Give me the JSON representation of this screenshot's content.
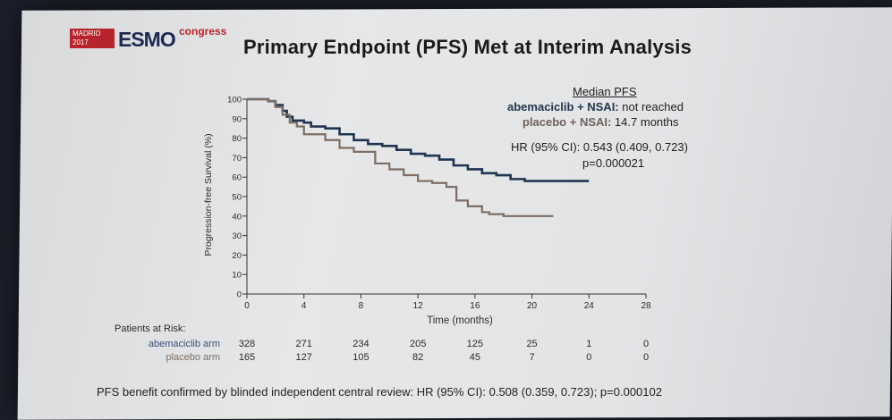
{
  "header": {
    "logo_city": "MADRID",
    "logo_year": "2017",
    "logo_name": "ESMO",
    "logo_sub": "congress",
    "title": "Primary Endpoint (PFS) Met at Interim Analysis"
  },
  "annotation": {
    "median_heading": "Median PFS",
    "arm1_label": "abemaciclib + NSAI:",
    "arm1_value": "not reached",
    "arm2_label": "placebo + NSAI:",
    "arm2_value": "14.7 months",
    "hr_text": "HR (95% CI): 0.543 (0.409, 0.723)",
    "p_text": "p=0.000021"
  },
  "risk_table": {
    "heading": "Patients at Risk:",
    "rows": [
      {
        "label": "abemaciclib arm",
        "values": [
          "328",
          "271",
          "234",
          "205",
          "125",
          "25",
          "1",
          "0"
        ],
        "color": "#3b4f7a"
      },
      {
        "label": "placebo arm",
        "values": [
          "165",
          "127",
          "105",
          "82",
          "45",
          "7",
          "0",
          "0"
        ],
        "color": "#7a6f66"
      }
    ]
  },
  "footer": "PFS benefit confirmed by blinded independent central review: HR (95% CI): 0.508 (0.359, 0.723); p=0.000102",
  "chart_data": {
    "type": "line",
    "title": "",
    "xlabel": "Time (months)",
    "ylabel": "Progression-free Survival (%)",
    "xlim": [
      0,
      28
    ],
    "ylim": [
      0,
      100
    ],
    "x_ticks": [
      0,
      4,
      8,
      12,
      16,
      20,
      24,
      28
    ],
    "y_ticks": [
      0,
      10,
      20,
      30,
      40,
      50,
      60,
      70,
      80,
      90,
      100
    ],
    "grid": false,
    "series": [
      {
        "name": "abemaciclib + NSAI",
        "color": "#1f3550",
        "step": true,
        "x": [
          0,
          1.5,
          2.0,
          2.5,
          2.8,
          3.2,
          4.0,
          4.5,
          5.5,
          6.5,
          7.5,
          8.5,
          9.5,
          10.5,
          11.5,
          12.5,
          13.5,
          14.5,
          15.5,
          16.5,
          17.5,
          18.5,
          19.5,
          20.5,
          22.0,
          24.0
        ],
        "y": [
          100,
          99,
          97,
          94,
          91,
          89,
          88,
          86,
          85,
          82,
          79,
          77,
          76,
          74,
          72,
          71,
          69,
          66,
          64,
          62,
          61,
          59,
          58,
          58,
          58,
          58
        ]
      },
      {
        "name": "placebo + NSAI",
        "color": "#7d6d63",
        "step": true,
        "x": [
          0,
          1.5,
          2.0,
          2.5,
          3.0,
          3.5,
          4.0,
          5.5,
          6.5,
          7.5,
          9.0,
          10.0,
          11.0,
          12.0,
          13.0,
          14.0,
          14.7,
          15.5,
          16.5,
          17.0,
          18.0,
          20.0,
          21.5
        ],
        "y": [
          100,
          99,
          96,
          92,
          88,
          86,
          82,
          79,
          75,
          73,
          67,
          64,
          61,
          58,
          57,
          55,
          48,
          45,
          42,
          41,
          40,
          40,
          40
        ]
      }
    ]
  }
}
